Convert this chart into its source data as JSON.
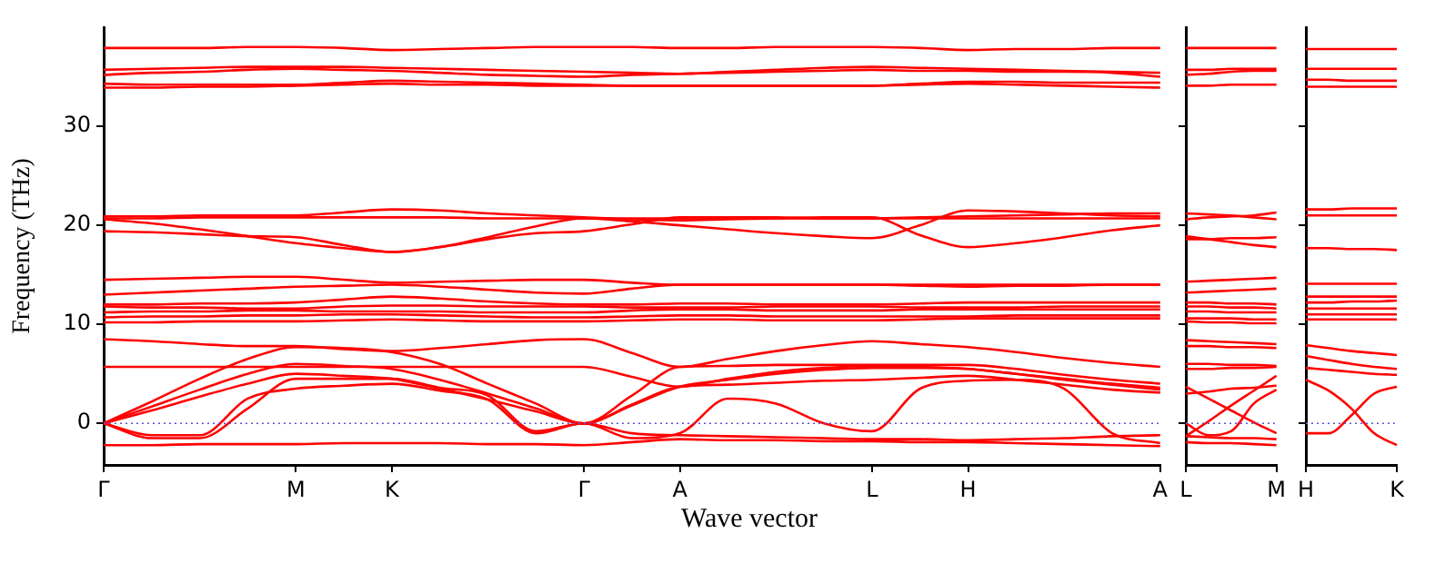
{
  "chart_data": [
    {
      "type": "line",
      "xlabel": "Wave vector",
      "ylabel": "Frequency (THz)",
      "grid": false,
      "ylim": [
        -4.2,
        40
      ],
      "yticks": [
        0,
        10,
        20,
        30
      ],
      "categories": [
        "Γ",
        null,
        null,
        null,
        "M",
        null,
        "K",
        null,
        null,
        null,
        "Γ",
        null,
        "A",
        null,
        null,
        null,
        "L",
        null,
        "H",
        null,
        null,
        null,
        "A"
      ],
      "ref_lines": [
        {
          "axis": "y",
          "value": 0,
          "color": "#5555dd",
          "line_style": "dotted"
        }
      ],
      "series": [
        {
          "color": "#ff0000",
          "values": [
            37.9,
            37.9,
            37.9,
            38.0,
            38.0,
            37.9,
            37.7,
            37.8,
            37.9,
            38.0,
            38.0,
            38.0,
            37.9,
            37.9,
            38.0,
            38.0,
            38.0,
            37.9,
            37.7,
            37.8,
            37.8,
            37.9,
            37.9
          ]
        },
        {
          "color": "#ff0000",
          "values": [
            35.7,
            35.8,
            35.9,
            36.0,
            36.0,
            36.0,
            35.9,
            35.8,
            35.7,
            35.6,
            35.5,
            35.4,
            35.3,
            35.5,
            35.7,
            35.9,
            36.0,
            35.9,
            35.8,
            35.7,
            35.6,
            35.5,
            35.4
          ]
        },
        {
          "color": "#ff0000",
          "values": [
            35.2,
            35.4,
            35.5,
            35.7,
            35.8,
            35.7,
            35.6,
            35.4,
            35.2,
            35.1,
            35.0,
            35.2,
            35.3,
            35.4,
            35.5,
            35.6,
            35.7,
            35.6,
            35.6,
            35.5,
            35.5,
            35.4,
            35.0
          ]
        },
        {
          "color": "#ff0000",
          "values": [
            34.3,
            34.2,
            34.2,
            34.2,
            34.2,
            34.4,
            34.6,
            34.5,
            34.4,
            34.3,
            34.2,
            34.1,
            34.1,
            34.1,
            34.1,
            34.1,
            34.1,
            34.3,
            34.5,
            34.5,
            34.4,
            34.4,
            34.4
          ]
        },
        {
          "color": "#ff0000",
          "values": [
            33.9,
            33.9,
            34.0,
            34.0,
            34.1,
            34.2,
            34.3,
            34.2,
            34.2,
            34.1,
            34.1,
            34.1,
            34.1,
            34.1,
            34.1,
            34.1,
            34.1,
            34.2,
            34.3,
            34.2,
            34.1,
            34.0,
            33.9
          ]
        },
        {
          "color": "#ff0000",
          "values": [
            20.7,
            20.7,
            20.8,
            20.8,
            20.8,
            20.8,
            20.8,
            20.8,
            20.7,
            20.7,
            20.7,
            20.7,
            20.7,
            20.7,
            20.7,
            20.7,
            20.7,
            20.8,
            20.9,
            21.0,
            21.1,
            21.2,
            21.2
          ]
        },
        {
          "color": "#ff0000",
          "values": [
            20.9,
            20.9,
            21.0,
            21.0,
            21.0,
            21.3,
            21.6,
            21.5,
            21.2,
            21.0,
            20.8,
            20.6,
            20.5,
            20.6,
            20.7,
            20.8,
            20.8,
            19.0,
            17.8,
            18.2,
            18.8,
            19.5,
            20.0
          ]
        },
        {
          "color": "#ff0000",
          "values": [
            19.4,
            19.3,
            19.1,
            18.9,
            18.8,
            18.0,
            17.3,
            17.8,
            18.8,
            19.9,
            20.7,
            20.4,
            20.0,
            19.6,
            19.2,
            18.9,
            18.7,
            20.0,
            21.5,
            21.4,
            21.2,
            21.0,
            20.9
          ]
        },
        {
          "color": "#ff0000",
          "values": [
            20.6,
            20.2,
            19.6,
            18.9,
            18.2,
            17.7,
            17.3,
            17.8,
            18.6,
            19.2,
            19.4,
            20.1,
            20.8,
            20.8,
            20.8,
            20.7,
            20.7,
            20.7,
            20.7,
            20.7,
            20.7,
            20.7,
            20.7
          ]
        },
        {
          "color": "#ff0000",
          "values": [
            14.5,
            14.6,
            14.7,
            14.8,
            14.8,
            14.5,
            14.2,
            14.3,
            14.4,
            14.5,
            14.5,
            14.2,
            14.0,
            14.0,
            14.0,
            14.0,
            14.0,
            14.0,
            14.0,
            14.0,
            14.0,
            14.0,
            14.0
          ]
        },
        {
          "color": "#ff0000",
          "values": [
            13.0,
            13.2,
            13.4,
            13.6,
            13.8,
            13.9,
            14.0,
            13.8,
            13.5,
            13.2,
            13.1,
            13.6,
            14.0,
            14.0,
            14.0,
            14.0,
            14.0,
            13.9,
            13.8,
            13.9,
            13.9,
            14.0,
            14.0
          ]
        },
        {
          "color": "#ff0000",
          "values": [
            12.0,
            12.0,
            12.1,
            12.1,
            12.2,
            12.5,
            12.8,
            12.6,
            12.3,
            12.1,
            12.0,
            12.0,
            12.1,
            12.1,
            12.0,
            12.0,
            12.0,
            12.1,
            12.2,
            12.2,
            12.2,
            12.2,
            12.2
          ]
        },
        {
          "color": "#ff0000",
          "values": [
            11.8,
            11.7,
            11.7,
            11.6,
            11.6,
            11.8,
            11.9,
            11.9,
            11.8,
            11.8,
            11.8,
            11.7,
            11.7,
            11.7,
            11.8,
            11.8,
            11.8,
            11.7,
            11.7,
            11.7,
            11.8,
            11.8,
            11.8
          ]
        },
        {
          "color": "#ff0000",
          "values": [
            11.2,
            11.3,
            11.3,
            11.4,
            11.4,
            11.3,
            11.3,
            11.3,
            11.2,
            11.2,
            11.2,
            11.4,
            11.5,
            11.5,
            11.4,
            11.4,
            11.4,
            11.5,
            11.5,
            11.5,
            11.5,
            11.5,
            11.5
          ]
        },
        {
          "color": "#ff0000",
          "values": [
            10.7,
            10.8,
            10.8,
            10.9,
            10.9,
            11.0,
            11.0,
            10.9,
            10.8,
            10.7,
            10.7,
            10.8,
            10.9,
            10.9,
            10.8,
            10.8,
            10.8,
            10.8,
            10.8,
            10.9,
            10.9,
            10.9,
            10.9
          ]
        },
        {
          "color": "#ff0000",
          "values": [
            10.2,
            10.2,
            10.3,
            10.3,
            10.3,
            10.4,
            10.5,
            10.4,
            10.3,
            10.3,
            10.3,
            10.4,
            10.5,
            10.5,
            10.4,
            10.4,
            10.4,
            10.5,
            10.6,
            10.6,
            10.6,
            10.6,
            10.6
          ]
        },
        {
          "color": "#ff0000",
          "values": [
            8.5,
            8.3,
            8.0,
            7.8,
            7.8,
            7.5,
            7.3,
            7.6,
            8.0,
            8.4,
            8.5,
            7.1,
            5.7,
            6.5,
            7.3,
            7.9,
            8.3,
            8.0,
            7.7,
            7.2,
            6.6,
            6.1,
            5.7
          ]
        },
        {
          "color": "#ff0000",
          "values": [
            5.7,
            5.7,
            5.7,
            5.7,
            5.7,
            5.7,
            5.7,
            5.7,
            5.7,
            5.7,
            5.7,
            4.7,
            3.7,
            4.5,
            5.2,
            5.6,
            5.8,
            5.7,
            5.5,
            5.0,
            4.4,
            3.9,
            3.4
          ]
        },
        {
          "color": "#ff0000",
          "values": [
            0,
            2.2,
            4.5,
            6.5,
            7.7,
            7.6,
            7.2,
            6.0,
            4.0,
            2.0,
            0,
            2.8,
            5.7,
            5.8,
            5.9,
            5.9,
            5.9,
            5.9,
            5.9,
            5.5,
            4.9,
            4.4,
            4.0
          ]
        },
        {
          "color": "#ff0000",
          "values": [
            0,
            1.7,
            3.4,
            5.0,
            6.0,
            5.8,
            5.5,
            4.4,
            3.0,
            1.5,
            0,
            1.8,
            3.7,
            4.4,
            5.0,
            5.4,
            5.6,
            5.6,
            5.5,
            5.0,
            4.5,
            4.0,
            3.6
          ]
        },
        {
          "color": "#ff0000",
          "values": [
            0,
            1.3,
            2.7,
            4.0,
            5.0,
            4.8,
            4.5,
            3.5,
            2.4,
            1.2,
            0,
            1.9,
            3.7,
            3.9,
            4.1,
            4.3,
            4.4,
            4.6,
            4.8,
            4.4,
            3.9,
            3.4,
            3.1
          ]
        },
        {
          "color": "#ff0000",
          "values": [
            0,
            -1.2,
            -1.2,
            2.5,
            3.5,
            3.8,
            4.0,
            3.3,
            2.4,
            -1.0,
            0,
            -1.5,
            -1.0,
            2.5,
            2.0,
            0.0,
            -0.8,
            3.5,
            4.3,
            4.4,
            3.5,
            -1.0,
            -2.0
          ]
        },
        {
          "color": "#ff0000",
          "values": [
            0,
            -1.5,
            -1.5,
            1.5,
            4.5,
            4.5,
            4.5,
            3.6,
            2.8,
            -0.8,
            0,
            -1.0,
            -1.2,
            -1.3,
            -1.4,
            -1.5,
            -1.6,
            -1.6,
            -1.7,
            -1.6,
            -1.5,
            -1.3,
            -1.2
          ]
        },
        {
          "color": "#ff0000",
          "values": [
            -2.2,
            -2.2,
            -2.1,
            -2.1,
            -2.1,
            -2.0,
            -2.0,
            -2.0,
            -2.1,
            -2.1,
            -2.2,
            -1.9,
            -1.6,
            -1.7,
            -1.7,
            -1.8,
            -1.8,
            -1.9,
            -1.9,
            -2.0,
            -2.1,
            -2.2,
            -2.3
          ]
        }
      ]
    },
    {
      "type": "line",
      "grid": false,
      "tick_labels": "x",
      "ylim": [
        -4.2,
        40
      ],
      "yticks": [
        0,
        10,
        20,
        30
      ],
      "categories": [
        "L",
        null,
        null,
        null,
        "M"
      ],
      "ref_lines": [
        {
          "axis": "y",
          "value": 0,
          "color": "#5555dd",
          "line_style": "dotted"
        }
      ],
      "series": [
        {
          "color": "#ff0000",
          "values": [
            37.9,
            37.9,
            37.9,
            37.9,
            37.9
          ]
        },
        {
          "color": "#ff0000",
          "values": [
            35.7,
            35.7,
            35.8,
            35.8,
            35.8
          ]
        },
        {
          "color": "#ff0000",
          "values": [
            35.2,
            35.3,
            35.5,
            35.6,
            35.6
          ]
        },
        {
          "color": "#ff0000",
          "values": [
            34.1,
            34.1,
            34.2,
            34.2,
            34.2
          ]
        },
        {
          "color": "#ff0000",
          "values": [
            21.2,
            21.1,
            21.0,
            20.8,
            20.6
          ]
        },
        {
          "color": "#ff0000",
          "values": [
            20.6,
            20.8,
            20.9,
            21.0,
            21.3
          ]
        },
        {
          "color": "#ff0000",
          "values": [
            18.9,
            18.6,
            18.3,
            18.0,
            17.8
          ]
        },
        {
          "color": "#ff0000",
          "values": [
            18.6,
            18.6,
            18.7,
            18.7,
            18.8
          ]
        },
        {
          "color": "#ff0000",
          "values": [
            14.3,
            14.4,
            14.5,
            14.6,
            14.7
          ]
        },
        {
          "color": "#ff0000",
          "values": [
            13.2,
            13.3,
            13.4,
            13.5,
            13.6
          ]
        },
        {
          "color": "#ff0000",
          "values": [
            12.2,
            12.2,
            12.1,
            12.1,
            12.0
          ]
        },
        {
          "color": "#ff0000",
          "values": [
            11.8,
            11.8,
            11.7,
            11.7,
            11.6
          ]
        },
        {
          "color": "#ff0000",
          "values": [
            11.3,
            11.3,
            11.2,
            11.2,
            11.2
          ]
        },
        {
          "color": "#ff0000",
          "values": [
            10.6,
            10.6,
            10.6,
            10.5,
            10.5
          ]
        },
        {
          "color": "#ff0000",
          "values": [
            10.3,
            10.2,
            10.2,
            10.1,
            10.1
          ]
        },
        {
          "color": "#ff0000",
          "values": [
            8.4,
            8.3,
            8.2,
            8.1,
            8.0
          ]
        },
        {
          "color": "#ff0000",
          "values": [
            7.8,
            7.8,
            7.7,
            7.7,
            7.6
          ]
        },
        {
          "color": "#ff0000",
          "values": [
            6.0,
            6.0,
            5.9,
            5.9,
            5.8
          ]
        },
        {
          "color": "#ff0000",
          "values": [
            5.5,
            5.5,
            5.6,
            5.6,
            5.7
          ]
        },
        {
          "color": "#ff0000",
          "values": [
            3.7,
            2.5,
            1.3,
            0.1,
            -1.0
          ]
        },
        {
          "color": "#ff0000",
          "values": [
            -1.3,
            0.2,
            1.8,
            3.3,
            4.8
          ]
        },
        {
          "color": "#ff0000",
          "values": [
            3.0,
            3.2,
            3.5,
            3.6,
            3.8
          ]
        },
        {
          "color": "#ff0000",
          "values": [
            0,
            -1.2,
            -0.8,
            2.0,
            3.4
          ]
        },
        {
          "color": "#ff0000",
          "values": [
            -1.3,
            -1.4,
            -1.5,
            -1.5,
            -1.6
          ]
        },
        {
          "color": "#ff0000",
          "values": [
            -1.9,
            -2.0,
            -2.0,
            -2.1,
            -2.2
          ]
        }
      ]
    },
    {
      "type": "line",
      "grid": false,
      "tick_labels": "x",
      "ylim": [
        -4.2,
        40
      ],
      "yticks": [
        0,
        10,
        20,
        30
      ],
      "categories": [
        "H",
        null,
        null,
        null,
        "K"
      ],
      "ref_lines": [
        {
          "axis": "y",
          "value": 0,
          "color": "#5555dd",
          "line_style": "dotted"
        }
      ],
      "series": [
        {
          "color": "#ff0000",
          "values": [
            37.8,
            37.8,
            37.8,
            37.8,
            37.8
          ]
        },
        {
          "color": "#ff0000",
          "values": [
            35.8,
            35.8,
            35.8,
            35.8,
            35.8
          ]
        },
        {
          "color": "#ff0000",
          "values": [
            34.7,
            34.7,
            34.6,
            34.6,
            34.6
          ]
        },
        {
          "color": "#ff0000",
          "values": [
            34.0,
            34.0,
            34.0,
            34.0,
            34.0
          ]
        },
        {
          "color": "#ff0000",
          "values": [
            21.6,
            21.6,
            21.7,
            21.7,
            21.7
          ]
        },
        {
          "color": "#ff0000",
          "values": [
            21.0,
            21.0,
            21.0,
            21.0,
            21.0
          ]
        },
        {
          "color": "#ff0000",
          "values": [
            17.7,
            17.7,
            17.6,
            17.6,
            17.5
          ]
        },
        {
          "color": "#ff0000",
          "values": [
            14.1,
            14.1,
            14.1,
            14.1,
            14.1
          ]
        },
        {
          "color": "#ff0000",
          "values": [
            12.8,
            12.8,
            12.8,
            12.8,
            12.8
          ]
        },
        {
          "color": "#ff0000",
          "values": [
            12.2,
            12.2,
            12.3,
            12.3,
            12.4
          ]
        },
        {
          "color": "#ff0000",
          "values": [
            11.6,
            11.6,
            11.6,
            11.6,
            11.6
          ]
        },
        {
          "color": "#ff0000",
          "values": [
            11.0,
            11.0,
            11.0,
            11.0,
            11.0
          ]
        },
        {
          "color": "#ff0000",
          "values": [
            10.5,
            10.5,
            10.5,
            10.5,
            10.5
          ]
        },
        {
          "color": "#ff0000",
          "values": [
            7.9,
            7.6,
            7.3,
            7.1,
            6.9
          ]
        },
        {
          "color": "#ff0000",
          "values": [
            6.8,
            6.4,
            6.0,
            5.7,
            5.5
          ]
        },
        {
          "color": "#ff0000",
          "values": [
            5.6,
            5.4,
            5.2,
            5.0,
            4.9
          ]
        },
        {
          "color": "#ff0000",
          "values": [
            -1.0,
            -1.0,
            0.8,
            3.0,
            3.7
          ]
        },
        {
          "color": "#ff0000",
          "values": [
            4.4,
            3.3,
            1.5,
            -1.0,
            -2.2
          ]
        }
      ]
    }
  ]
}
